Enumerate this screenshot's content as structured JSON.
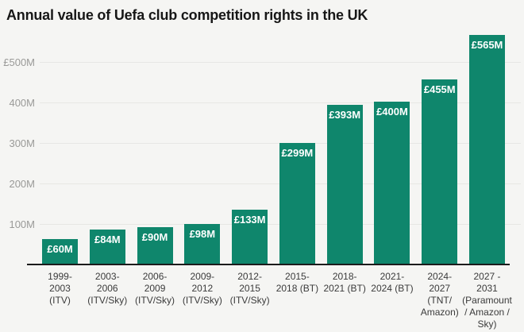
{
  "title": "Annual value of Uefa club competition rights in the UK",
  "colors": {
    "background": "#f5f5f3",
    "bar": "#0f866c",
    "bar_label": "#ffffff",
    "axis_line": "#1b1b1b",
    "gridline": "#e7e7e4",
    "y_label": "#9a9a98",
    "x_label": "#3b3b3b",
    "title": "#171717"
  },
  "chart_data": {
    "type": "bar",
    "title": "Annual value of Uefa club competition rights in the UK",
    "xlabel": "",
    "ylabel": "",
    "unit": "£M",
    "ylim": [
      0,
      580
    ],
    "grid": true,
    "legend": "none",
    "categories": [
      "1999-2003 (ITV)",
      "2003-2006 (ITV/Sky)",
      "2006-2009 (ITV/Sky)",
      "2009-2012 (ITV/Sky)",
      "2012-2015 (ITV/Sky)",
      "2015-2018 (BT)",
      "2018-2021 (BT)",
      "2021-2024 (BT)",
      "2024-2027 (TNT/Amazon)",
      "2027-2031 (Paramount / Amazon / Sky)"
    ],
    "category_lines": [
      [
        "1999-",
        "2003",
        "(ITV)"
      ],
      [
        "2003-",
        "2006",
        "(ITV/Sky)"
      ],
      [
        "2006-",
        "2009",
        "(ITV/Sky)"
      ],
      [
        "2009-",
        "2012",
        "(ITV/Sky)"
      ],
      [
        "2012-",
        "2015",
        "(ITV/Sky)"
      ],
      [
        "2015-",
        "2018 (BT)"
      ],
      [
        "2018-",
        "2021 (BT)"
      ],
      [
        "2021-",
        "2024 (BT)"
      ],
      [
        "2024-",
        "2027",
        "(TNT/",
        "Amazon)"
      ],
      [
        "2027 -",
        "2031",
        "(Paramount",
        "/ Amazon /",
        "Sky)"
      ]
    ],
    "values": [
      60,
      84,
      90,
      98,
      133,
      299,
      393,
      400,
      455,
      565
    ],
    "bar_labels": [
      "£60M",
      "£84M",
      "£90M",
      "£98M",
      "£133M",
      "£299M",
      "£393M",
      "£400M",
      "£455M",
      "£565M"
    ],
    "y_ticks": [
      {
        "label": "£500M",
        "value": 500
      },
      {
        "label": "400M",
        "value": 400
      },
      {
        "label": "300M",
        "value": 300
      },
      {
        "label": "200M",
        "value": 200
      },
      {
        "label": "100M",
        "value": 100
      }
    ]
  }
}
